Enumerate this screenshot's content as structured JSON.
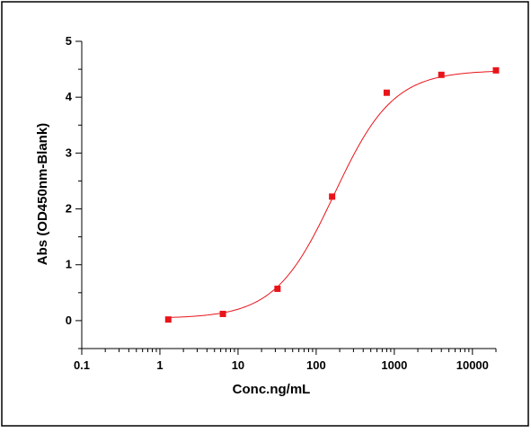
{
  "chart_data": {
    "type": "scatter",
    "title": "",
    "xlabel": "Conc.ng/mL",
    "ylabel": "Abs (OD450nm-Blank)",
    "x_scale": "log",
    "xlim": [
      0.1,
      20000
    ],
    "ylim": [
      -0.5,
      5
    ],
    "x_ticks": [
      0.1,
      1,
      10,
      100,
      1000,
      10000
    ],
    "x_tick_labels": [
      "0.1",
      "1",
      "10",
      "100",
      "1000",
      "10000"
    ],
    "y_ticks": [
      0,
      1,
      2,
      3,
      4,
      5
    ],
    "y_tick_labels": [
      "0",
      "1",
      "2",
      "3",
      "4",
      "5"
    ],
    "grid": false,
    "legend": "none",
    "series": [
      {
        "points": [
          {
            "x": 1.28,
            "y": 0.02
          },
          {
            "x": 6.4,
            "y": 0.12
          },
          {
            "x": 32,
            "y": 0.57
          },
          {
            "x": 160,
            "y": 2.22
          },
          {
            "x": 800,
            "y": 4.08
          },
          {
            "x": 4000,
            "y": 4.4
          },
          {
            "x": 20000,
            "y": 4.48
          }
        ],
        "marker": "square",
        "color": "#e8141a",
        "fit": {
          "model": "4PL",
          "bottom": 0.04,
          "top": 4.48,
          "ec50": 170,
          "hill": 1.15
        }
      }
    ],
    "frame_color": "#000000"
  }
}
